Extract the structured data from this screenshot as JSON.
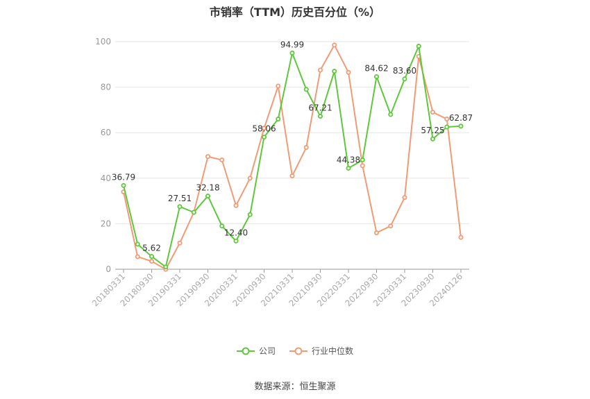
{
  "chart_data": {
    "type": "line",
    "title": "市销率（TTM）历史百分位（%）",
    "x": [
      "20180331",
      "20180630",
      "20180930",
      "20181231",
      "20190331",
      "20190630",
      "20190930",
      "20191231",
      "20200331",
      "20200630",
      "20200930",
      "20201231",
      "20210331",
      "20210630",
      "20210930",
      "20211231",
      "20220331",
      "20220630",
      "20220930",
      "20221231",
      "20230331",
      "20230630",
      "20230930",
      "20231231",
      "20240126"
    ],
    "x_tick_labels": [
      "20180331",
      "20180930",
      "20190331",
      "20190930",
      "20200331",
      "20200930",
      "20210331",
      "20210930",
      "20220331",
      "20220930",
      "20230331",
      "20230930",
      "20240126"
    ],
    "ylim": [
      0,
      100
    ],
    "y_ticks": [
      "0",
      "20",
      "40",
      "60",
      "80",
      "100"
    ],
    "grid": true,
    "legend_position": "bottom",
    "series": [
      {
        "name": "公司",
        "color": "#5cc83a",
        "values": [
          36.79,
          11.0,
          5.62,
          1.0,
          27.51,
          25.0,
          32.18,
          19.0,
          12.4,
          24.0,
          58.06,
          66.0,
          94.99,
          79.0,
          67.21,
          87.0,
          44.38,
          48.0,
          84.62,
          68.0,
          83.6,
          98.0,
          57.25,
          62.5,
          62.87
        ],
        "data_labels": [
          {
            "index": 0,
            "text": "36.79"
          },
          {
            "index": 2,
            "text": "5.62"
          },
          {
            "index": 4,
            "text": "27.51"
          },
          {
            "index": 6,
            "text": "32.18"
          },
          {
            "index": 8,
            "text": "12.40"
          },
          {
            "index": 10,
            "text": "58.06"
          },
          {
            "index": 12,
            "text": "94.99"
          },
          {
            "index": 14,
            "text": "67.21"
          },
          {
            "index": 16,
            "text": "44.38"
          },
          {
            "index": 18,
            "text": "84.62"
          },
          {
            "index": 20,
            "text": "83.60"
          },
          {
            "index": 22,
            "text": "57.25"
          },
          {
            "index": 24,
            "text": "62.87"
          }
        ]
      },
      {
        "name": "行业中位数",
        "color": "#f29a76",
        "values": [
          34.0,
          5.5,
          3.5,
          0.0,
          11.5,
          25.0,
          49.5,
          48.0,
          28.0,
          40.0,
          62.0,
          80.5,
          41.0,
          53.5,
          87.5,
          98.5,
          86.5,
          45.5,
          16.0,
          19.0,
          31.5,
          93.5,
          69.0,
          66.0,
          14.0
        ]
      }
    ]
  },
  "source_text": "数据来源：恒生聚源"
}
